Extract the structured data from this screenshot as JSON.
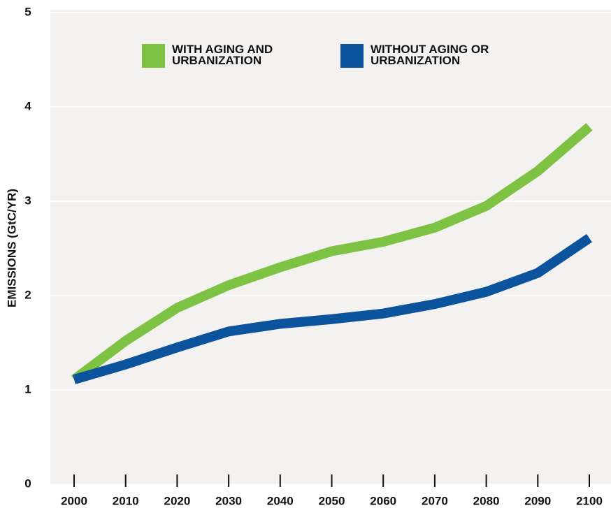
{
  "chart_data": {
    "type": "line",
    "y_label": "EMISSIONS (GtC/YR)",
    "x": [
      2000,
      2010,
      2020,
      2030,
      2040,
      2050,
      2060,
      2070,
      2080,
      2090,
      2100
    ],
    "series": [
      {
        "name": "WITH AGING AND URBANIZATION",
        "color": "#7dc243",
        "values": [
          1.11,
          1.52,
          1.87,
          2.11,
          2.3,
          2.47,
          2.57,
          2.72,
          2.95,
          3.32,
          3.79
        ]
      },
      {
        "name": "WITHOUT AGING OR URBANIZATION",
        "color": "#0b539d",
        "values": [
          1.11,
          1.27,
          1.45,
          1.62,
          1.7,
          1.75,
          1.81,
          1.91,
          2.04,
          2.24,
          2.61
        ]
      }
    ],
    "xlim": [
      2000,
      2100
    ],
    "xticks": [
      2000,
      2010,
      2020,
      2030,
      2040,
      2050,
      2060,
      2070,
      2080,
      2090,
      2100
    ],
    "ylim": [
      0,
      5
    ],
    "yticks": [
      0,
      1,
      2,
      3,
      4,
      5
    ],
    "grid": true
  }
}
